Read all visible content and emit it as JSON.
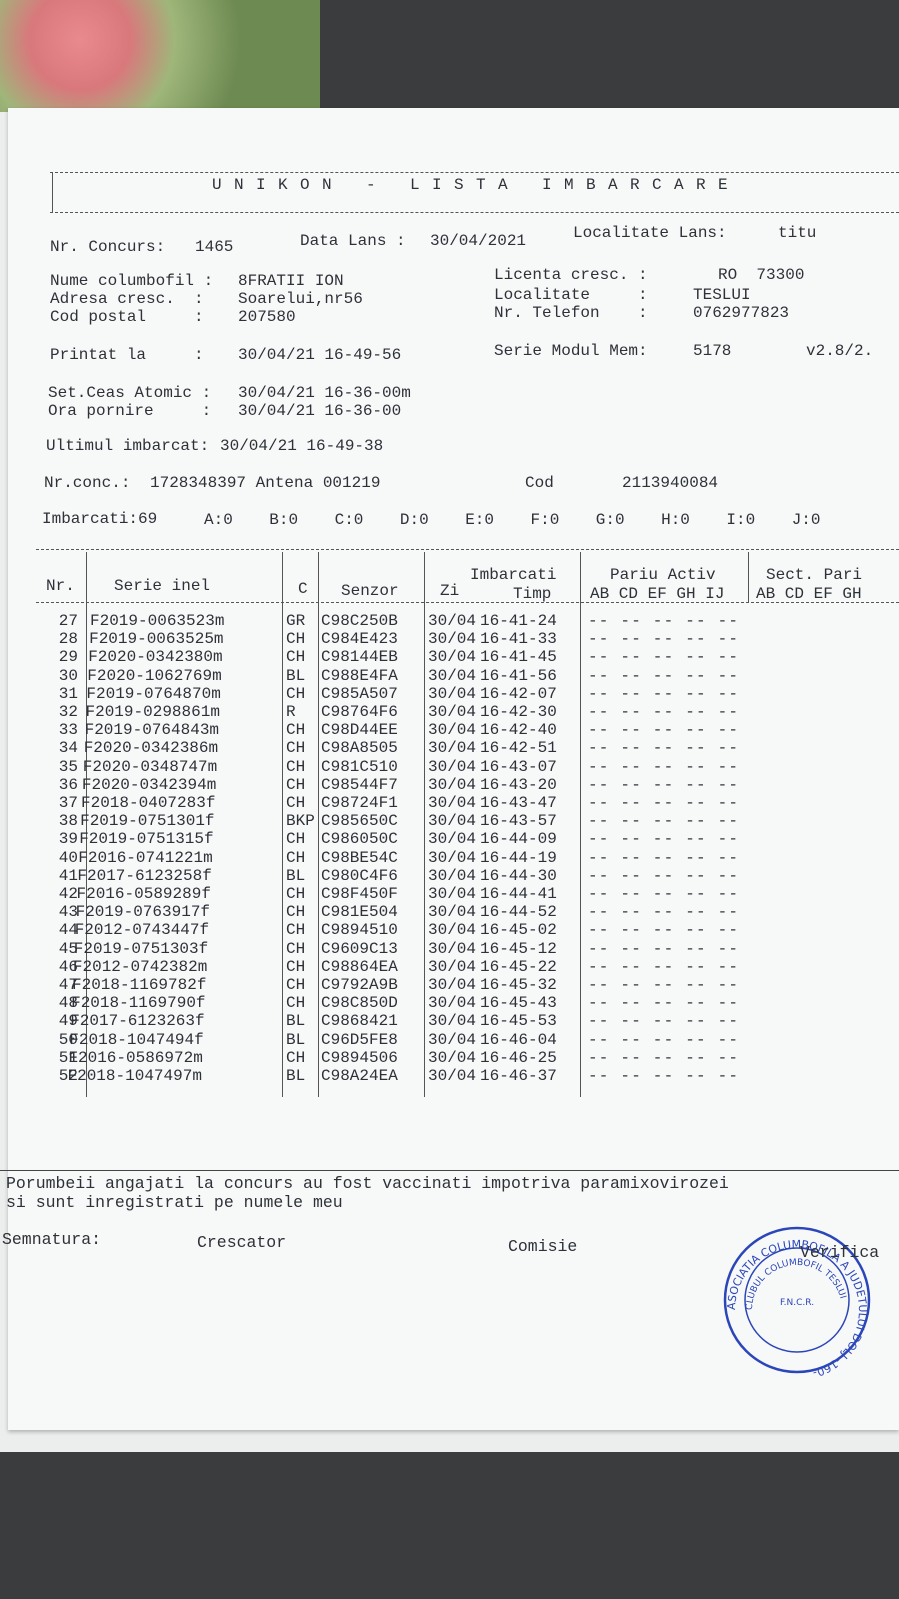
{
  "header": {
    "title": "UNIKON - LISTA IMBARCARE"
  },
  "fields": [
    {
      "label": "Nr. Concurs:",
      "value": "1465"
    },
    {
      "label": "Data Lans :",
      "value": "30/04/2021"
    },
    {
      "label": "Localitate Lans:",
      "value": "titu"
    },
    {
      "label": "Nume columbofil :",
      "value": "8FRATII ION"
    },
    {
      "label": "Adresa cresc.  :",
      "value": "Soarelui,nr56"
    },
    {
      "label": "Cod postal     :",
      "value": "207580"
    },
    {
      "label": "Licenta cresc. :",
      "value": "RO  73300"
    },
    {
      "label": "Localitate     :",
      "value": "TESLUI"
    },
    {
      "label": "Nr. Telefon    :",
      "value": "0762977823"
    },
    {
      "label": "Printat la     :",
      "value": "30/04/21 16-49-56"
    },
    {
      "label": "Serie Modul Mem:",
      "value": "5178"
    },
    {
      "label": "Set.Ceas Atomic :",
      "value": "30/04/21 16-36-00m"
    },
    {
      "label": "Ora pornire     :",
      "value": "30/04/21 16-36-00"
    },
    {
      "label": "Ultimul imbarcat:",
      "value": "30/04/21 16-49-38"
    },
    {
      "label": "Nr.conc.:",
      "value": "1728348397 Antena 001219"
    },
    {
      "label": "Cod",
      "value": "2113940084"
    }
  ],
  "version": "v2.8/2.",
  "summary": {
    "label": "Imbarcati:69",
    "counts": [
      "A:0",
      "B:0",
      "C:0",
      "D:0",
      "E:0",
      "F:0",
      "G:0",
      "H:0",
      "I:0",
      "J:0"
    ]
  },
  "table": {
    "columns": [
      "Nr.",
      "Serie inel",
      "C",
      "Senzor",
      "Zi",
      "Imbarcati",
      "Timp",
      "Pariu Activ",
      "AB CD EF GH IJ",
      "Sect. Pari",
      "AB CD EF GH"
    ],
    "rows": [
      [
        27,
        "F2019-0063523m",
        "GR",
        "C98C250B",
        "30/04",
        "16-41-24",
        "-- -- -- -- --"
      ],
      [
        28,
        "F2019-0063525m",
        "CH",
        "C984E423",
        "30/04",
        "16-41-33",
        "-- -- -- -- --"
      ],
      [
        29,
        "F2020-0342380m",
        "CH",
        "C98144EB",
        "30/04",
        "16-41-45",
        "-- -- -- -- --"
      ],
      [
        30,
        "F2020-1062769m",
        "BL",
        "C988E4FA",
        "30/04",
        "16-41-56",
        "-- -- -- -- --"
      ],
      [
        31,
        "F2019-0764870m",
        "CH",
        "C985A507",
        "30/04",
        "16-42-07",
        "-- -- -- -- --"
      ],
      [
        32,
        "F2019-0298861m",
        "R",
        "C98764F6",
        "30/04",
        "16-42-30",
        "-- -- -- -- --"
      ],
      [
        33,
        "F2019-0764843m",
        "CH",
        "C98D44EE",
        "30/04",
        "16-42-40",
        "-- -- -- -- --"
      ],
      [
        34,
        "F2020-0342386m",
        "CH",
        "C98A8505",
        "30/04",
        "16-42-51",
        "-- -- -- -- --"
      ],
      [
        35,
        "F2020-0348747m",
        "CH",
        "C981C510",
        "30/04",
        "16-43-07",
        "-- -- -- -- --"
      ],
      [
        36,
        "F2020-0342394m",
        "CH",
        "C98544F7",
        "30/04",
        "16-43-20",
        "-- -- -- -- --"
      ],
      [
        37,
        "F2018-0407283f",
        "CH",
        "C98724F1",
        "30/04",
        "16-43-47",
        "-- -- -- -- --"
      ],
      [
        38,
        "F2019-0751301f",
        "BKP",
        "C985650C",
        "30/04",
        "16-43-57",
        "-- -- -- -- --"
      ],
      [
        39,
        "F2019-0751315f",
        "CH",
        "C986050C",
        "30/04",
        "16-44-09",
        "-- -- -- -- --"
      ],
      [
        40,
        "F2016-0741221m",
        "CH",
        "C98BE54C",
        "30/04",
        "16-44-19",
        "-- -- -- -- --"
      ],
      [
        41,
        "F2017-6123258f",
        "BL",
        "C980C4F6",
        "30/04",
        "16-44-30",
        "-- -- -- -- --"
      ],
      [
        42,
        "F2016-0589289f",
        "CH",
        "C98F450F",
        "30/04",
        "16-44-41",
        "-- -- -- -- --"
      ],
      [
        43,
        "F2019-0763917f",
        "CH",
        "C981E504",
        "30/04",
        "16-44-52",
        "-- -- -- -- --"
      ],
      [
        44,
        "F2012-0743447f",
        "CH",
        "C9894510",
        "30/04",
        "16-45-02",
        "-- -- -- -- --"
      ],
      [
        45,
        "F2019-0751303f",
        "CH",
        "C9609C13",
        "30/04",
        "16-45-12",
        "-- -- -- -- --"
      ],
      [
        46,
        "F2012-0742382m",
        "CH",
        "C98864EA",
        "30/04",
        "16-45-22",
        "-- -- -- -- --"
      ],
      [
        47,
        "F2018-1169782f",
        "CH",
        "C9792A9B",
        "30/04",
        "16-45-32",
        "-- -- -- -- --"
      ],
      [
        48,
        "F2018-1169790f",
        "CH",
        "C98C850D",
        "30/04",
        "16-45-43",
        "-- -- -- -- --"
      ],
      [
        49,
        "F2017-6123263f",
        "BL",
        "C9868421",
        "30/04",
        "16-45-53",
        "-- -- -- -- --"
      ],
      [
        50,
        "F2018-1047494f",
        "BL",
        "C96D5FE8",
        "30/04",
        "16-46-04",
        "-- -- -- -- --"
      ],
      [
        51,
        "F2016-0586972m",
        "CH",
        "C9894506",
        "30/04",
        "16-46-25",
        "-- -- -- -- --"
      ],
      [
        52,
        "F2018-1047497m",
        "BL",
        "C98A24EA",
        "30/04",
        "16-46-37",
        "-- -- -- -- --"
      ]
    ]
  },
  "footer": {
    "declaration": [
      "Porumbeii angajati la concurs au fost vaccinati impotriva paramixovirozei",
      "si sunt inregistrati pe numele meu"
    ],
    "signatures": [
      "Semnatura:",
      "Crescator",
      "Comisie",
      "Verifica"
    ]
  },
  "stamp": {
    "outer": "ASOCIATIA COLUMBOFILA A JUDETULUI DOLJ -160-",
    "inner": "CLUBUL COLUMBOFIL TESLUI",
    "side": "F.N.C.R."
  }
}
